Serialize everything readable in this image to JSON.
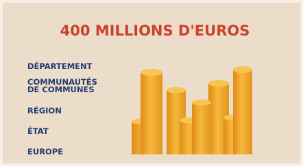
{
  "title": "400 MILLIONS D'EUROS",
  "labels": [
    [
      "DÉPARTEMENT"
    ],
    [
      "COMMUNAUTÉS",
      "DE COMMUNES"
    ],
    [
      "RÉGION"
    ],
    [
      "ÉTAT"
    ],
    [
      "EUROPE"
    ]
  ]
}
